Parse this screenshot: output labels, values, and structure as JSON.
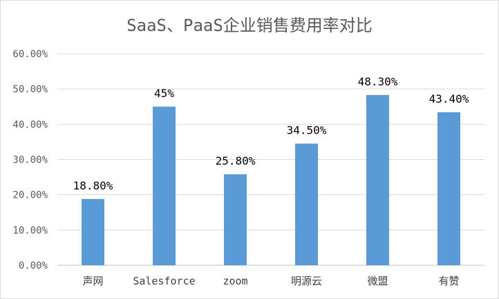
{
  "chart_data": {
    "type": "bar",
    "title": "SaaS、PaaS企业销售费用率对比",
    "xlabel": "",
    "ylabel": "",
    "categories": [
      "声网",
      "Salesforce",
      "zoom",
      "明源云",
      "微盟",
      "有赞"
    ],
    "values": [
      18.8,
      45,
      25.8,
      34.5,
      48.3,
      43.4
    ],
    "data_labels": [
      "18.80%",
      "45%",
      "25.80%",
      "34.50%",
      "48.30%",
      "43.40%"
    ],
    "y_ticks": [
      "0.00%",
      "10.00%",
      "20.00%",
      "30.00%",
      "40.00%",
      "50.00%",
      "60.00%"
    ],
    "ylim": [
      0,
      60
    ],
    "grid": true,
    "legend": "none",
    "bar_color": "#5b9bd5"
  }
}
